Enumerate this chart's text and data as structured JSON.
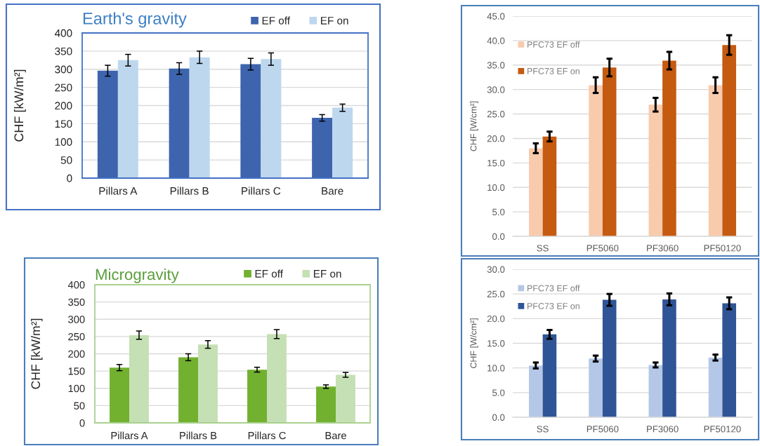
{
  "chart_data": [
    {
      "type": "bar",
      "title": "Earth's gravity",
      "ylabel": "CHF [kW/m²]",
      "categories": [
        "Pillars A",
        "Pillars B",
        "Pillars C",
        "Bare"
      ],
      "series": [
        {
          "name": "EF off",
          "color": "#3d64ad",
          "values": [
            296,
            302,
            314,
            166
          ],
          "errors": [
            15,
            16,
            16,
            9
          ]
        },
        {
          "name": "EF on",
          "color": "#bdd7ee",
          "values": [
            325,
            333,
            328,
            194
          ],
          "errors": [
            16,
            17,
            17,
            10
          ]
        }
      ],
      "ylim": [
        0,
        400
      ],
      "yticks": [
        0,
        50,
        100,
        150,
        200,
        250,
        300,
        350,
        400
      ],
      "grid": "y",
      "legend": "top right"
    },
    {
      "type": "bar",
      "title": "Microgravity",
      "ylabel": "CHF [kW/m²]",
      "categories": [
        "Pillars A",
        "Pillars B",
        "Pillars C",
        "Bare"
      ],
      "series": [
        {
          "name": "EF off",
          "color": "#72b030",
          "values": [
            160,
            190,
            154,
            105
          ],
          "errors": [
            9,
            10,
            7,
            5
          ]
        },
        {
          "name": "EF on",
          "color": "#c5e0b4",
          "values": [
            254,
            227,
            257,
            139
          ],
          "errors": [
            12,
            11,
            13,
            7
          ]
        }
      ],
      "ylim": [
        0,
        400
      ],
      "yticks": [
        0,
        50,
        100,
        150,
        200,
        250,
        300,
        350,
        400
      ],
      "grid": "y",
      "legend": "top right"
    },
    {
      "type": "bar",
      "ylabel": "CHF [W/cm²]",
      "categories": [
        "SS",
        "PF5060",
        "PF3060",
        "PF50120"
      ],
      "series": [
        {
          "name": "PFC73 EF off",
          "color": "#f8cbad",
          "values": [
            18.0,
            30.9,
            26.9,
            30.9
          ],
          "errors": [
            1.0,
            1.6,
            1.4,
            1.6
          ]
        },
        {
          "name": "PFC73 EF on",
          "color": "#c55a11",
          "values": [
            20.4,
            34.5,
            35.9,
            39.1
          ],
          "errors": [
            1.0,
            1.8,
            1.8,
            2.0
          ]
        }
      ],
      "ylim": [
        0,
        45
      ],
      "yticks": [
        {
          "value": 0,
          "label": "0.0"
        },
        {
          "value": 5,
          "label": "5.0"
        },
        {
          "value": 10,
          "label": "10.0"
        },
        {
          "value": 15,
          "label": "15.0"
        },
        {
          "value": 20,
          "label": "20.0"
        },
        {
          "value": 25,
          "label": "25.0"
        },
        {
          "value": 30,
          "label": "30.0"
        },
        {
          "value": 35,
          "label": "35.0"
        },
        {
          "value": 40,
          "label": "40.0"
        },
        {
          "value": 45,
          "label": "45.0"
        }
      ],
      "grid": "y",
      "legend": "top left"
    },
    {
      "type": "bar",
      "ylabel": "CHF [W/cm²]",
      "categories": [
        "SS",
        "PF5060",
        "PF3060",
        "PF50120"
      ],
      "series": [
        {
          "name": "PFC73 EF off",
          "color": "#b4c7e7",
          "values": [
            10.5,
            11.9,
            10.6,
            12.1
          ],
          "errors": [
            0.6,
            0.6,
            0.5,
            0.6
          ]
        },
        {
          "name": "PFC73 EF on",
          "color": "#2f5597",
          "values": [
            16.8,
            23.8,
            23.9,
            23.1
          ],
          "errors": [
            0.9,
            1.2,
            1.2,
            1.2
          ]
        }
      ],
      "ylim": [
        0,
        30
      ],
      "yticks": [
        {
          "value": 0,
          "label": "0.0"
        },
        {
          "value": 5,
          "label": "5.0"
        },
        {
          "value": 10,
          "label": "10.0"
        },
        {
          "value": 15,
          "label": "15.0"
        },
        {
          "value": 20,
          "label": "20.0"
        },
        {
          "value": 25,
          "label": "25.0"
        },
        {
          "value": 30,
          "label": "30.0"
        }
      ],
      "grid": "y",
      "legend": "top left"
    }
  ]
}
